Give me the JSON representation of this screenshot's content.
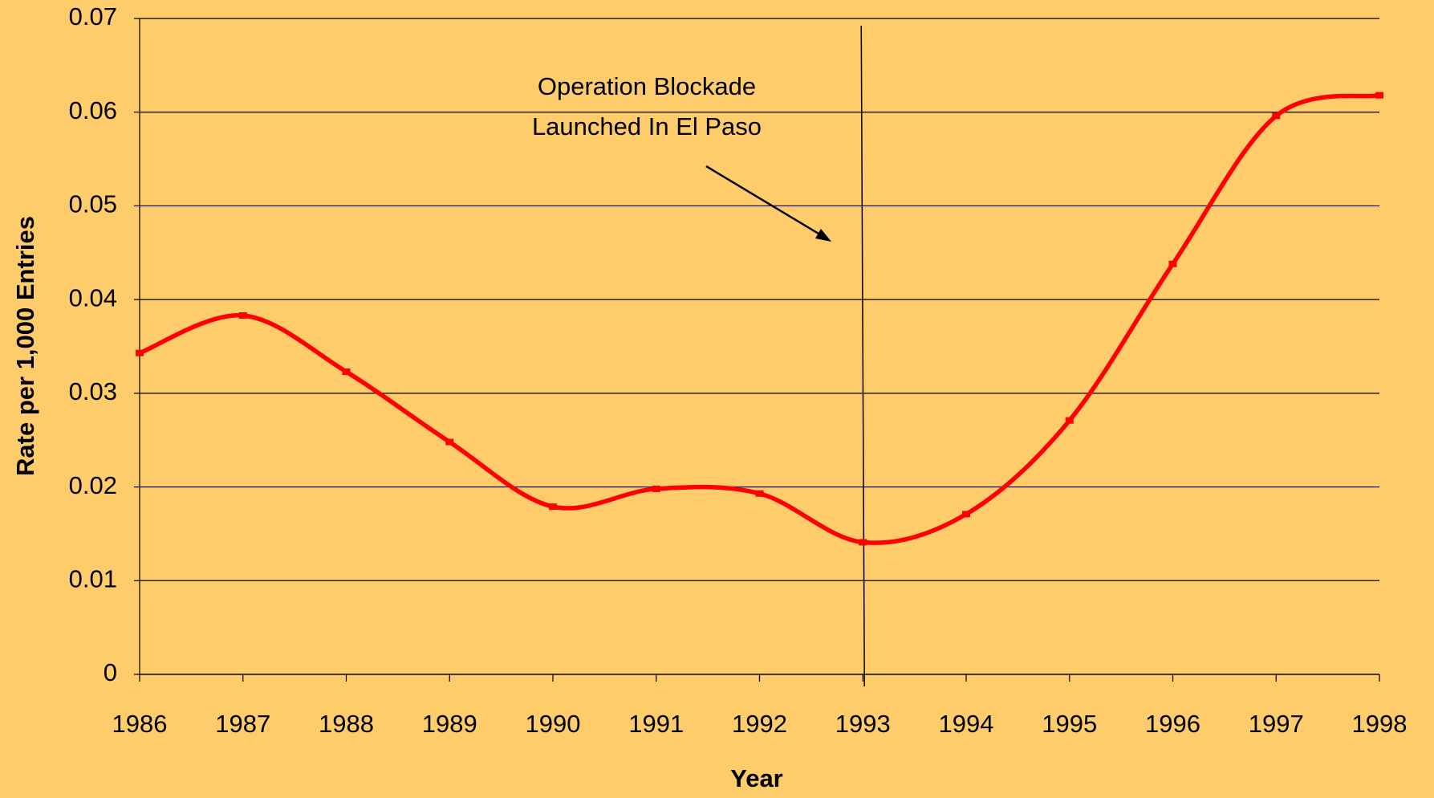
{
  "chart_data": {
    "type": "line",
    "x_label": "Year",
    "y_label": "Rate per 1,000 Entries",
    "annotation": [
      "Operation Blockade",
      "Launched In El Paso"
    ],
    "vline_x": 1993,
    "x": [
      1986,
      1987,
      1988,
      1989,
      1990,
      1991,
      1992,
      1993,
      1994,
      1995,
      1996,
      1997,
      1998
    ],
    "series": [
      {
        "color": "#ff0000",
        "values": [
          0.0343,
          0.0383,
          0.0323,
          0.0248,
          0.0179,
          0.0198,
          0.0193,
          0.0141,
          0.0171,
          0.0271,
          0.0438,
          0.0596,
          0.0618
        ]
      }
    ],
    "xlim": [
      1986,
      1998
    ],
    "xticks": [
      1986,
      1987,
      1988,
      1989,
      1990,
      1991,
      1992,
      1993,
      1994,
      1995,
      1996,
      1997,
      1998
    ],
    "ylim": [
      0,
      0.07
    ],
    "yticks": [
      0,
      0.01,
      0.02,
      0.03,
      0.04,
      0.05,
      0.06,
      0.07
    ],
    "grid": true,
    "background": "#fecc6a"
  }
}
